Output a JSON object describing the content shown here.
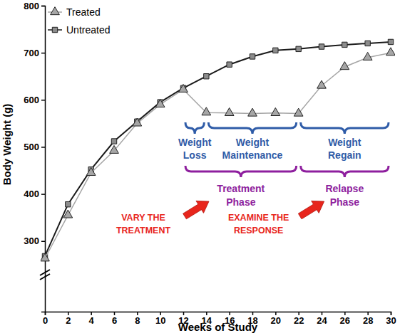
{
  "chart_data": {
    "type": "line",
    "x_label": "Weeks of Study",
    "y_label": "Body Weight (g)",
    "x": [
      0,
      2,
      4,
      6,
      8,
      10,
      12,
      14,
      16,
      18,
      20,
      22,
      24,
      26,
      28,
      30
    ],
    "series": [
      {
        "name": "Treated",
        "color": "#a6a6a6",
        "marker": "triangle",
        "line_style": "solid",
        "values": [
          263,
          355,
          445,
          492,
          550,
          590,
          622,
          573,
          572,
          571,
          572,
          571,
          630,
          670,
          690,
          700
        ]
      },
      {
        "name": "Untreated",
        "color": "#1a1a1a",
        "marker": "square",
        "line_style": "solid",
        "values": [
          268,
          378,
          452,
          512,
          554,
          595,
          625,
          650,
          675,
          692,
          705,
          708,
          713,
          717,
          720,
          723
        ]
      }
    ],
    "xlim": [
      0,
      30
    ],
    "ylim": [
      150,
      800
    ],
    "xticks": [
      0,
      2,
      4,
      6,
      8,
      10,
      12,
      14,
      16,
      18,
      20,
      22,
      24,
      26,
      28,
      30
    ],
    "yticks": [
      300,
      400,
      500,
      600,
      700,
      800
    ],
    "grid": false,
    "legend": "top-left",
    "phases": [
      {
        "label": [
          "Weight",
          "Loss"
        ],
        "start": 12,
        "end": 14,
        "color": "#2f5ca8"
      },
      {
        "label": [
          "Weight",
          "Maintenance"
        ],
        "start": 14,
        "end": 22,
        "color": "#2f5ca8"
      },
      {
        "label": [
          "Weight",
          "Regain"
        ],
        "start": 22,
        "end": 30,
        "color": "#2f5ca8"
      }
    ],
    "phase_groups": [
      {
        "label": [
          "Treatment",
          "Phase"
        ],
        "start": 12,
        "end": 22,
        "color": "#8e1f9e"
      },
      {
        "label": [
          "Relapse",
          "Phase"
        ],
        "start": 22,
        "end": 30,
        "color": "#8e1f9e"
      }
    ],
    "callouts": [
      {
        "text": [
          "VARY THE",
          "TREATMENT"
        ],
        "color": "#e8251c"
      },
      {
        "text": [
          "EXAMINE THE",
          "RESPONSE"
        ],
        "color": "#e8251c"
      }
    ]
  }
}
